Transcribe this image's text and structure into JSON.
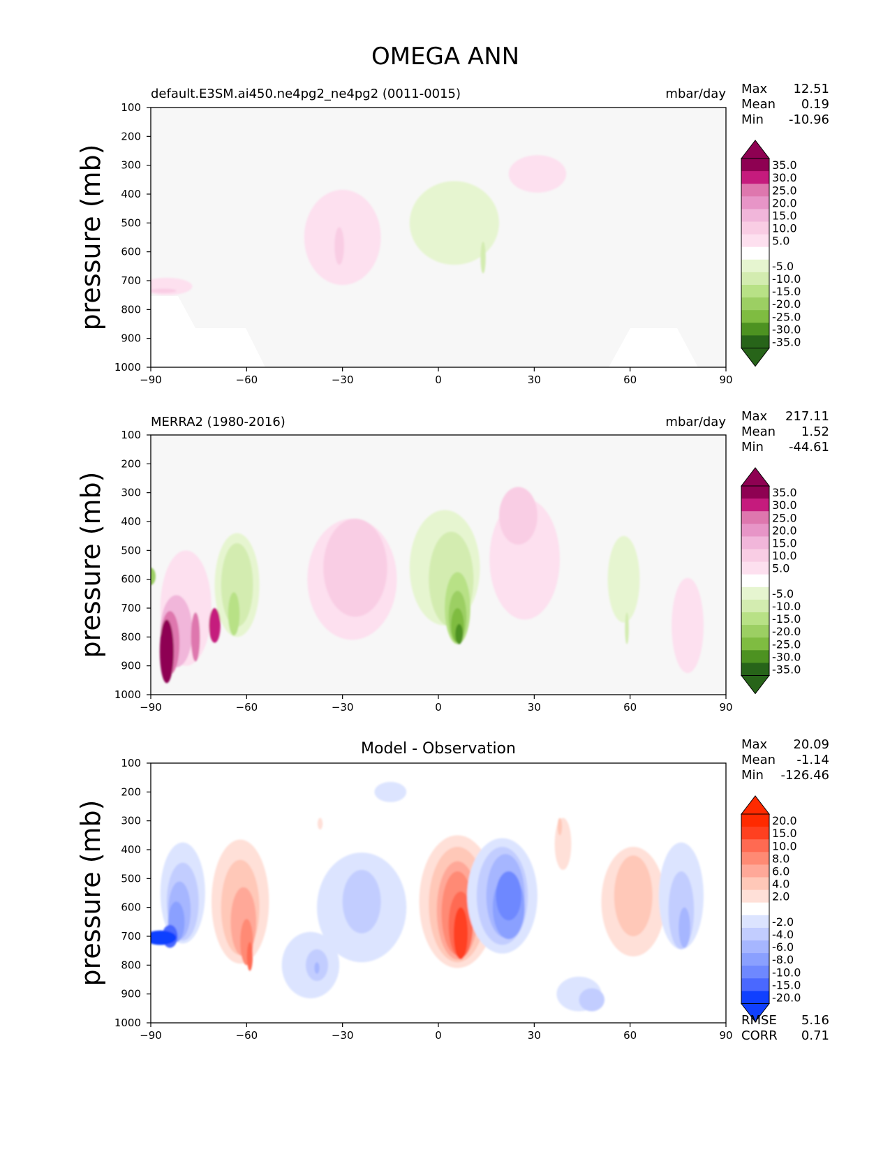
{
  "figure": {
    "title": "OMEGA ANN",
    "ylabel": "pressure (mb)"
  },
  "colors": {
    "background": "#f7f7f7",
    "pos": [
      "#fde0ef",
      "#f9cde4",
      "#f1b6da",
      "#e795c7",
      "#de77ae",
      "#c51b7d",
      "#8e0152"
    ],
    "neg": [
      "#e6f5d0",
      "#d3ecb0",
      "#b8e186",
      "#9ccf63",
      "#7fbc41",
      "#4d9221",
      "#276419"
    ],
    "diff_pos": [
      "#ffe0d8",
      "#ffc8b8",
      "#ffa898",
      "#ff8a74",
      "#ff6a52",
      "#ff4020",
      "#ff2a00"
    ],
    "diff_neg": [
      "#dce4ff",
      "#c2cdff",
      "#a6b6ff",
      "#8aa0ff",
      "#6e88ff",
      "#4a68ff",
      "#1040ff"
    ]
  },
  "chart_data": [
    {
      "type": "heatmap",
      "id": "panel1",
      "title_left": "default.E3SM.ai450.ne4pg2_ne4pg2 (0011-0015)",
      "title_right": "mbar/day",
      "xlim": [
        -90,
        90
      ],
      "ylim": [
        1000,
        100
      ],
      "xticks": [
        "−90",
        "−60",
        "−30",
        "0",
        "30",
        "60",
        "90"
      ],
      "yticks": [
        "100",
        "200",
        "300",
        "400",
        "500",
        "600",
        "700",
        "800",
        "900",
        "1000"
      ],
      "stats": [
        [
          "Max",
          "12.51"
        ],
        [
          "Mean",
          "0.19"
        ],
        [
          "Min",
          "-10.96"
        ]
      ],
      "colorbar_labels": [
        "35.0",
        "30.0",
        "25.0",
        "20.0",
        "15.0",
        "10.0",
        "5.0",
        "-5.0",
        "-10.0",
        "-15.0",
        "-20.0",
        "-25.0",
        "-30.0",
        "-35.0"
      ],
      "features": [
        {
          "lat": -30,
          "p": 550,
          "w": 12,
          "h": 330,
          "level": 1
        },
        {
          "lat": -31,
          "p": 580,
          "w": 1.5,
          "h": 130,
          "level": 2
        },
        {
          "lat": 5,
          "p": 500,
          "w": 14,
          "h": 290,
          "level": -1
        },
        {
          "lat": 14,
          "p": 620,
          "w": 0.8,
          "h": 110,
          "level": -2
        },
        {
          "lat": 31,
          "p": 330,
          "w": 9,
          "h": 130,
          "level": 1
        },
        {
          "lat": -85,
          "p": 720,
          "w": 8,
          "h": 60,
          "level": 1
        },
        {
          "lat": -86,
          "p": 735,
          "w": 4,
          "h": 15,
          "level": 2
        }
      ]
    },
    {
      "type": "heatmap",
      "id": "panel2",
      "title_left": "MERRA2 (1980-2016)",
      "title_right": "mbar/day",
      "xlim": [
        -90,
        90
      ],
      "ylim": [
        1000,
        100
      ],
      "xticks": [
        "−90",
        "−60",
        "−30",
        "0",
        "30",
        "60",
        "90"
      ],
      "yticks": [
        "100",
        "200",
        "300",
        "400",
        "500",
        "600",
        "700",
        "800",
        "900",
        "1000"
      ],
      "stats": [
        [
          "Max",
          "217.11"
        ],
        [
          "Mean",
          "1.52"
        ],
        [
          "Min",
          "-44.61"
        ]
      ],
      "colorbar_labels": [
        "35.0",
        "30.0",
        "25.0",
        "20.0",
        "15.0",
        "10.0",
        "5.0",
        "-5.0",
        "-10.0",
        "-15.0",
        "-20.0",
        "-25.0",
        "-30.0",
        "-35.0"
      ],
      "features": [
        {
          "lat": -27,
          "p": 600,
          "w": 14,
          "h": 420,
          "level": 1
        },
        {
          "lat": -26,
          "p": 560,
          "w": 10,
          "h": 340,
          "level": 2
        },
        {
          "lat": -63,
          "p": 620,
          "w": 7,
          "h": 360,
          "level": -1
        },
        {
          "lat": -63,
          "p": 620,
          "w": 5,
          "h": 290,
          "level": -2
        },
        {
          "lat": -64,
          "p": 720,
          "w": 1.8,
          "h": 150,
          "level": -3
        },
        {
          "lat": 2,
          "p": 560,
          "w": 11,
          "h": 400,
          "level": -1
        },
        {
          "lat": 4,
          "p": 600,
          "w": 7,
          "h": 330,
          "level": -2
        },
        {
          "lat": 6,
          "p": 700,
          "w": 4,
          "h": 250,
          "level": -3
        },
        {
          "lat": 6,
          "p": 730,
          "w": 2.8,
          "h": 180,
          "level": -4
        },
        {
          "lat": 6,
          "p": 760,
          "w": 2.0,
          "h": 120,
          "level": -5
        },
        {
          "lat": 6.5,
          "p": 790,
          "w": 1.2,
          "h": 70,
          "level": -6
        },
        {
          "lat": 27,
          "p": 530,
          "w": 11,
          "h": 420,
          "level": 1
        },
        {
          "lat": 25,
          "p": 380,
          "w": 6,
          "h": 200,
          "level": 2
        },
        {
          "lat": 58,
          "p": 600,
          "w": 5,
          "h": 300,
          "level": -1
        },
        {
          "lat": 59,
          "p": 770,
          "w": 0.6,
          "h": 110,
          "level": -2
        },
        {
          "lat": 78,
          "p": 760,
          "w": 5,
          "h": 330,
          "level": 1
        },
        {
          "lat": -79,
          "p": 700,
          "w": 8,
          "h": 400,
          "level": 1
        },
        {
          "lat": -82,
          "p": 780,
          "w": 5,
          "h": 250,
          "level": 3
        },
        {
          "lat": -84,
          "p": 820,
          "w": 3,
          "h": 220,
          "level": 5
        },
        {
          "lat": -85,
          "p": 850,
          "w": 2.2,
          "h": 220,
          "level": 7
        },
        {
          "lat": -76,
          "p": 800,
          "w": 1.4,
          "h": 170,
          "level": 5
        },
        {
          "lat": -70,
          "p": 760,
          "w": 1.8,
          "h": 120,
          "level": 6
        },
        {
          "lat": -90,
          "p": 590,
          "w": 1.5,
          "h": 60,
          "level": -4
        }
      ]
    },
    {
      "type": "heatmap",
      "id": "panel3",
      "title_center": "Model - Observation",
      "xlim": [
        -90,
        90
      ],
      "ylim": [
        1000,
        100
      ],
      "xticks": [
        "−90",
        "−60",
        "−30",
        "0",
        "30",
        "60",
        "90"
      ],
      "yticks": [
        "100",
        "200",
        "300",
        "400",
        "500",
        "600",
        "700",
        "800",
        "900",
        "1000"
      ],
      "stats": [
        [
          "Max",
          "20.09"
        ],
        [
          "Mean",
          "-1.14"
        ],
        [
          "Min",
          "-126.46"
        ]
      ],
      "metrics": [
        [
          "RMSE",
          "5.16"
        ],
        [
          "CORR",
          "0.71"
        ]
      ],
      "colorbar_labels": [
        "20.0",
        "15.0",
        "10.0",
        "8.0",
        "6.0",
        "4.0",
        "2.0",
        "-2.0",
        "-4.0",
        "-6.0",
        "-8.0",
        "-10.0",
        "-15.0",
        "-20.0"
      ],
      "features": [
        {
          "lat": -62,
          "p": 580,
          "w": 9,
          "h": 430,
          "level": 1
        },
        {
          "lat": -62,
          "p": 600,
          "w": 6,
          "h": 330,
          "level": 2
        },
        {
          "lat": -61,
          "p": 650,
          "w": 4,
          "h": 240,
          "level": 3
        },
        {
          "lat": -60,
          "p": 720,
          "w": 2,
          "h": 160,
          "level": 4
        },
        {
          "lat": -59,
          "p": 770,
          "w": 0.9,
          "h": 100,
          "level": 5
        },
        {
          "lat": -80,
          "p": 550,
          "w": 7,
          "h": 350,
          "level": -1
        },
        {
          "lat": -80,
          "p": 580,
          "w": 5,
          "h": 270,
          "level": -2
        },
        {
          "lat": -81,
          "p": 610,
          "w": 3.5,
          "h": 200,
          "level": -3
        },
        {
          "lat": -82,
          "p": 650,
          "w": 2.6,
          "h": 140,
          "level": -4
        },
        {
          "lat": -84,
          "p": 700,
          "w": 2.4,
          "h": 80,
          "level": -6
        },
        {
          "lat": -87,
          "p": 705,
          "w": 5,
          "h": 50,
          "level": -7
        },
        {
          "lat": -24,
          "p": 600,
          "w": 14,
          "h": 380,
          "level": -1
        },
        {
          "lat": -24,
          "p": 580,
          "w": 6,
          "h": 220,
          "level": -2
        },
        {
          "lat": -40,
          "p": 800,
          "w": 9,
          "h": 230,
          "level": -1
        },
        {
          "lat": -38,
          "p": 800,
          "w": 3.5,
          "h": 110,
          "level": -2
        },
        {
          "lat": -38,
          "p": 810,
          "w": 0.8,
          "h": 40,
          "level": -3
        },
        {
          "lat": -15,
          "p": 200,
          "w": 5,
          "h": 70,
          "level": -1
        },
        {
          "lat": 6,
          "p": 580,
          "w": 12,
          "h": 460,
          "level": 1
        },
        {
          "lat": 6,
          "p": 590,
          "w": 9,
          "h": 400,
          "level": 2
        },
        {
          "lat": 6,
          "p": 610,
          "w": 6.5,
          "h": 340,
          "level": 3
        },
        {
          "lat": 6,
          "p": 620,
          "w": 5,
          "h": 290,
          "level": 4
        },
        {
          "lat": 7,
          "p": 660,
          "w": 3.8,
          "h": 230,
          "level": 5
        },
        {
          "lat": 7,
          "p": 690,
          "w": 2.2,
          "h": 180,
          "level": 6
        },
        {
          "lat": 20,
          "p": 560,
          "w": 11,
          "h": 400,
          "level": -1
        },
        {
          "lat": 20,
          "p": 560,
          "w": 8,
          "h": 340,
          "level": -2
        },
        {
          "lat": 21,
          "p": 560,
          "w": 6,
          "h": 290,
          "level": -3
        },
        {
          "lat": 22,
          "p": 600,
          "w": 5,
          "h": 220,
          "level": -4
        },
        {
          "lat": 22,
          "p": 560,
          "w": 4,
          "h": 170,
          "level": -5
        },
        {
          "lat": 44,
          "p": 900,
          "w": 7,
          "h": 120,
          "level": -1
        },
        {
          "lat": 48,
          "p": 920,
          "w": 4,
          "h": 80,
          "level": -2
        },
        {
          "lat": 39,
          "p": 380,
          "w": 2.6,
          "h": 180,
          "level": 1
        },
        {
          "lat": 38,
          "p": 320,
          "w": 0.7,
          "h": 60,
          "level": 2
        },
        {
          "lat": 61,
          "p": 580,
          "w": 10,
          "h": 380,
          "level": 1
        },
        {
          "lat": 61,
          "p": 560,
          "w": 6,
          "h": 280,
          "level": 2
        },
        {
          "lat": -37,
          "p": 310,
          "w": 0.8,
          "h": 40,
          "level": 1
        },
        {
          "lat": 76,
          "p": 560,
          "w": 7,
          "h": 370,
          "level": -1
        },
        {
          "lat": 76,
          "p": 610,
          "w": 4,
          "h": 270,
          "level": -2
        },
        {
          "lat": 77,
          "p": 670,
          "w": 1.8,
          "h": 140,
          "level": -3
        }
      ]
    }
  ]
}
